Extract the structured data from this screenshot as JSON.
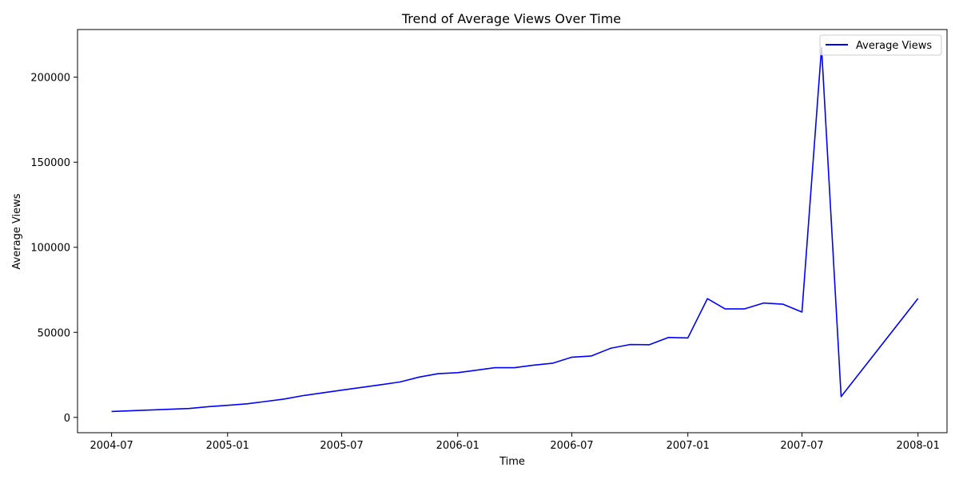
{
  "chart_data": {
    "type": "line",
    "title": "Trend of Average Views Over Time",
    "xlabel": "Time",
    "ylabel": "Average Views",
    "xlim": [
      "2004-05-08",
      "2008-02-16"
    ],
    "ylim": [
      -9000,
      228000
    ],
    "x_ticks": [
      "2004-07",
      "2005-01",
      "2005-07",
      "2006-01",
      "2006-07",
      "2007-01",
      "2007-07",
      "2008-01"
    ],
    "y_ticks": [
      0,
      50000,
      100000,
      150000,
      200000
    ],
    "legend_position": "top-right",
    "grid": false,
    "series": [
      {
        "name": "Average Views",
        "color": "#0000ff",
        "points": [
          {
            "x": "2004-07-01",
            "y": 3500
          },
          {
            "x": "2004-11-01",
            "y": 5200
          },
          {
            "x": "2004-12-01",
            "y": 6300
          },
          {
            "x": "2005-01-01",
            "y": 7100
          },
          {
            "x": "2005-02-01",
            "y": 8000
          },
          {
            "x": "2005-03-01",
            "y": 9300
          },
          {
            "x": "2005-04-01",
            "y": 10800
          },
          {
            "x": "2005-05-01",
            "y": 12800
          },
          {
            "x": "2005-06-01",
            "y": 14400
          },
          {
            "x": "2005-07-01",
            "y": 16000
          },
          {
            "x": "2005-08-01",
            "y": 17600
          },
          {
            "x": "2005-09-01",
            "y": 19200
          },
          {
            "x": "2005-10-01",
            "y": 20800
          },
          {
            "x": "2005-11-01",
            "y": 23700
          },
          {
            "x": "2005-12-01",
            "y": 25700
          },
          {
            "x": "2006-01-01",
            "y": 26300
          },
          {
            "x": "2006-02-01",
            "y": 27800
          },
          {
            "x": "2006-03-01",
            "y": 29200
          },
          {
            "x": "2006-04-01",
            "y": 29200
          },
          {
            "x": "2006-05-01",
            "y": 30700
          },
          {
            "x": "2006-06-01",
            "y": 31900
          },
          {
            "x": "2006-07-01",
            "y": 35400
          },
          {
            "x": "2006-08-01",
            "y": 36100
          },
          {
            "x": "2006-09-01",
            "y": 40700
          },
          {
            "x": "2006-10-01",
            "y": 42800
          },
          {
            "x": "2006-11-01",
            "y": 42700
          },
          {
            "x": "2006-12-01",
            "y": 47000
          },
          {
            "x": "2007-01-01",
            "y": 46700
          },
          {
            "x": "2007-02-01",
            "y": 69800
          },
          {
            "x": "2007-03-01",
            "y": 63800
          },
          {
            "x": "2007-04-01",
            "y": 63800
          },
          {
            "x": "2007-05-01",
            "y": 67200
          },
          {
            "x": "2007-06-01",
            "y": 66500
          },
          {
            "x": "2007-07-01",
            "y": 61900
          },
          {
            "x": "2007-08-01",
            "y": 217500
          },
          {
            "x": "2007-09-01",
            "y": 12200
          },
          {
            "x": "2008-01-01",
            "y": 69900
          }
        ]
      }
    ]
  }
}
